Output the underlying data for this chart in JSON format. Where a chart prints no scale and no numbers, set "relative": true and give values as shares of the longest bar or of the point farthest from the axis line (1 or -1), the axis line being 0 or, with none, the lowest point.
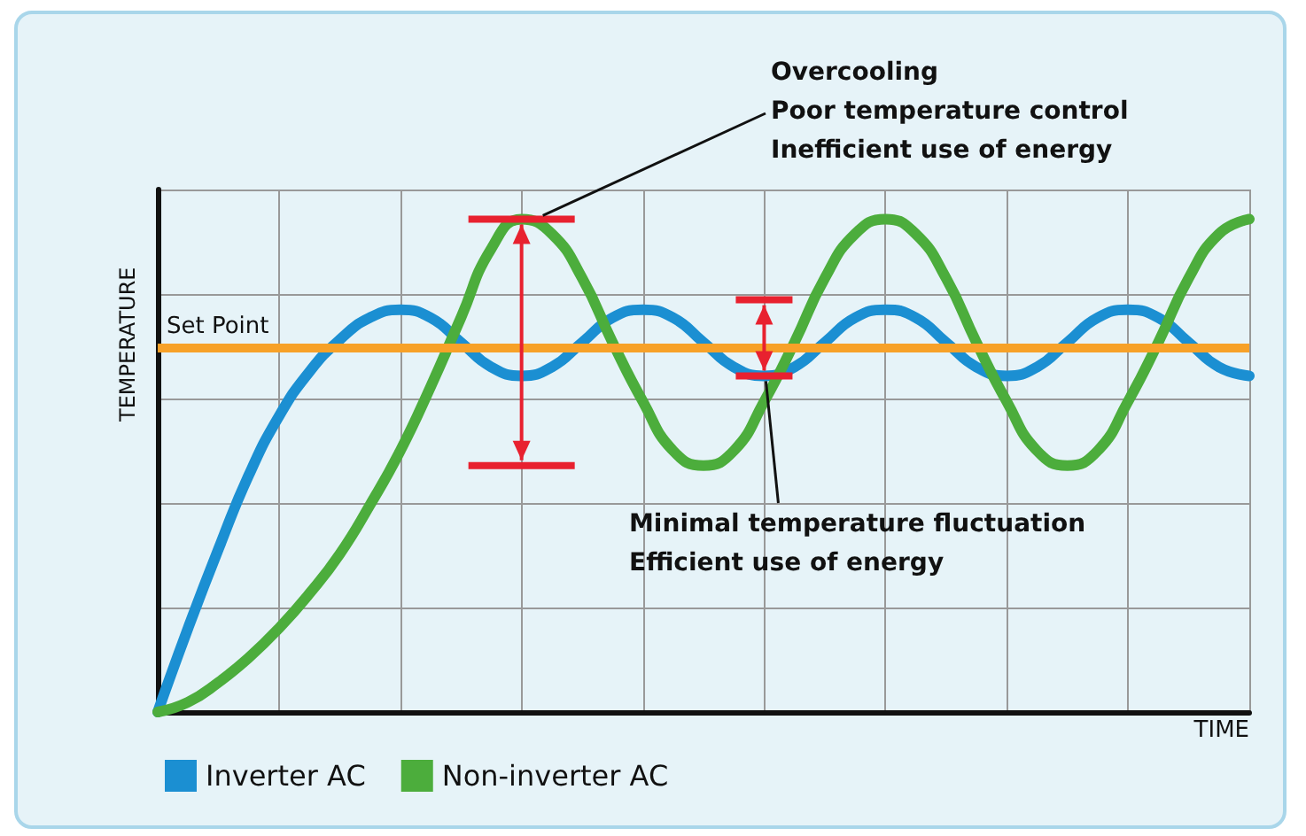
{
  "chart_data": {
    "type": "line",
    "relative": true,
    "xlabel": "TIME",
    "ylabel": "TEMPERATURE",
    "categories": [
      null,
      null,
      null,
      null,
      null,
      null,
      null,
      null,
      null,
      null,
      null,
      null,
      null,
      null,
      null,
      null,
      null,
      null,
      null,
      null,
      null,
      null,
      null,
      null,
      null,
      null,
      null,
      null,
      null,
      null,
      null,
      null,
      null,
      null,
      null,
      null,
      null
    ],
    "series": [
      {
        "name": "Inverter AC",
        "color": "#1b8fd2",
        "values": [
          0,
          0.17,
          0.33,
          0.48,
          0.6,
          0.69,
          0.755,
          0.8,
          0.816,
          0.8,
          0.75,
          0.7,
          0.682,
          0.7,
          0.75,
          0.8,
          0.816,
          0.8,
          0.75,
          0.7,
          0.682,
          0.7,
          0.75,
          0.8,
          0.816,
          0.8,
          0.75,
          0.7,
          0.682,
          0.7,
          0.75,
          0.8,
          0.816,
          0.8,
          0.75,
          0.7,
          0.682
        ]
      },
      {
        "name": "Non-inverter AC",
        "color": "#4cad3c",
        "values": [
          0,
          0.02,
          0.06,
          0.11,
          0.17,
          0.24,
          0.32,
          0.42,
          0.53,
          0.66,
          0.8,
          0.94,
          1,
          0.97,
          0.88,
          0.75,
          0.63,
          0.53,
          0.5,
          0.53,
          0.63,
          0.75,
          0.88,
          0.97,
          1,
          0.97,
          0.88,
          0.75,
          0.63,
          0.53,
          0.5,
          0.53,
          0.63,
          0.75,
          0.88,
          0.97,
          1
        ]
      }
    ],
    "ref_lines": [
      {
        "axis": "y",
        "value": 0.74,
        "label": "Set Point",
        "color": "#f7a128"
      }
    ],
    "annotations": [
      "Overcooling\nPoor temperature control\nInefficient use of energy",
      "Minimal temperature fluctuation\nEfficient use of energy"
    ],
    "grid": true,
    "legend": "bottom left",
    "line_style": "solid",
    "marker": "none"
  }
}
